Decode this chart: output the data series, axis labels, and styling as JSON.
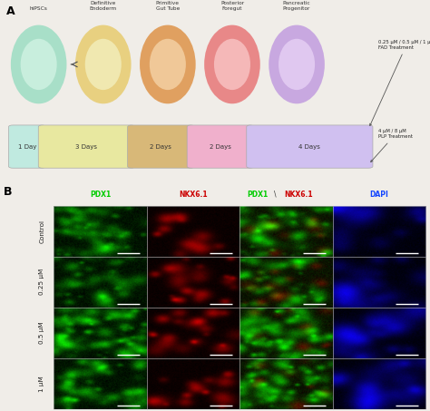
{
  "panel_A_label": "A",
  "panel_B_label": "B",
  "figure_bg": "#f0ede8",
  "circles": [
    {
      "label": "hiPSCs",
      "outer_color": "#a8dfc8",
      "inner_color": "#c8eedd"
    },
    {
      "label": "Definitive\nEndoderm",
      "outer_color": "#e8d080",
      "inner_color": "#f0e8b0"
    },
    {
      "label": "Primitive\nGut Tube",
      "outer_color": "#e0a060",
      "inner_color": "#f0c898"
    },
    {
      "label": "Posterior\nForegut",
      "outer_color": "#e88888",
      "inner_color": "#f5b8b8"
    },
    {
      "label": "Pancreatic\nProgenitor",
      "outer_color": "#c8a8e0",
      "inner_color": "#e0c8f0"
    }
  ],
  "bar_configs": [
    {
      "label": "1 Day",
      "color": "#c0eae0"
    },
    {
      "label": "3 Days",
      "color": "#e8e8a0"
    },
    {
      "label": "2 Days",
      "color": "#d8b878"
    },
    {
      "label": "2 Days",
      "color": "#f0b0cc"
    },
    {
      "label": "4 Days",
      "color": "#d0c0f0"
    }
  ],
  "ann1": "0.25 μM / 0.5 μM / 1 μM\nFAD Treatment",
  "ann2": "4 μM / 8 μM\nPLP Treatment",
  "col_headers": [
    "PDX1",
    "NKX6.1",
    "PDX1\\NKX6.1",
    "DAPI"
  ],
  "col_colors": [
    "#00cc00",
    "#cc0000",
    [
      "#00cc00",
      "#cc0000"
    ],
    "#1144ff"
  ],
  "row_labels": [
    "Control",
    "0.25 μM",
    "0.5 μM",
    "1 μM"
  ],
  "header_bg": "#e8e5e0",
  "cell_sep_color": "#d0ccc8",
  "row_label_bg": "#e8e5e0"
}
